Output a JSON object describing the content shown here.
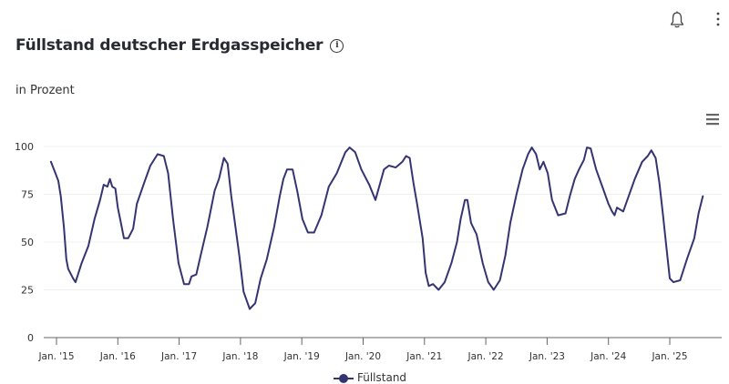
{
  "header": {
    "title": "Füllstand deutscher Erdgasspeicher",
    "info_icon": "info-icon",
    "subtitle": "in Prozent",
    "bell_icon": "bell-icon",
    "more_icon": "kebab-menu-icon",
    "chart_menu_icon": "hamburger-menu-icon"
  },
  "colors": {
    "line": "#353473",
    "grid": "#f0f0f0",
    "axis": "#666666",
    "text": "#262a33"
  },
  "legend": {
    "label": "Füllstand"
  },
  "chart_data": {
    "type": "line",
    "title": "Füllstand deutscher Erdgasspeicher",
    "subtitle": "in Prozent",
    "xlabel": "",
    "ylabel": "",
    "ylim": [
      0,
      100
    ],
    "yticks": [
      0,
      25,
      50,
      75,
      100
    ],
    "xticks": [
      "Jan. '15",
      "Jan. '16",
      "Jan. '17",
      "Jan. '18",
      "Jan. '19",
      "Jan. '20",
      "Jan. '21",
      "Jan. '22",
      "Jan. '23",
      "Jan. '24",
      "Jan. '25"
    ],
    "grid": true,
    "legend_position": "bottom-center",
    "series": [
      {
        "name": "Füllstand",
        "x_year": [
          2014.91,
          2014.97,
          2015.03,
          2015.07,
          2015.12,
          2015.16,
          2015.19,
          2015.27,
          2015.31,
          2015.41,
          2015.52,
          2015.62,
          2015.71,
          2015.77,
          2015.83,
          2015.87,
          2015.91,
          2015.96,
          2016.0,
          2016.05,
          2016.1,
          2016.17,
          2016.25,
          2016.31,
          2016.43,
          2016.53,
          2016.65,
          2016.75,
          2016.82,
          2016.9,
          2016.99,
          2017.08,
          2017.16,
          2017.2,
          2017.28,
          2017.35,
          2017.46,
          2017.58,
          2017.65,
          2017.73,
          2017.79,
          2017.85,
          2017.91,
          2017.98,
          2018.05,
          2018.15,
          2018.24,
          2018.33,
          2018.43,
          2018.55,
          2018.64,
          2018.7,
          2018.76,
          2018.85,
          2018.93,
          2019.01,
          2019.1,
          2019.2,
          2019.32,
          2019.44,
          2019.57,
          2019.71,
          2019.78,
          2019.87,
          2019.97,
          2020.1,
          2020.2,
          2020.28,
          2020.34,
          2020.42,
          2020.53,
          2020.64,
          2020.7,
          2020.76,
          2020.82,
          2020.88,
          2020.97,
          2021.02,
          2021.07,
          2021.14,
          2021.23,
          2021.33,
          2021.44,
          2021.53,
          2021.59,
          2021.66,
          2021.7,
          2021.76,
          2021.85,
          2021.95,
          2022.04,
          2022.13,
          2022.23,
          2022.32,
          2022.4,
          2022.5,
          2022.6,
          2022.69,
          2022.75,
          2022.82,
          2022.88,
          2022.94,
          2023.01,
          2023.08,
          2023.18,
          2023.3,
          2023.37,
          2023.45,
          2023.52,
          2023.6,
          2023.65,
          2023.71,
          2023.8,
          2023.9,
          2024.0,
          2024.06,
          2024.1,
          2024.14,
          2024.24,
          2024.33,
          2024.43,
          2024.55,
          2024.64,
          2024.7,
          2024.77,
          2024.83,
          2024.89,
          2024.95,
          2025.0,
          2025.06,
          2025.17,
          2025.28,
          2025.4,
          2025.47,
          2025.54
        ],
        "values": [
          92,
          87,
          82,
          74,
          58,
          41,
          36,
          31,
          29,
          39,
          48,
          62,
          72,
          80,
          79,
          83,
          79,
          78,
          68,
          60,
          52,
          52,
          57,
          70,
          81,
          90,
          96,
          95,
          86,
          62,
          39,
          28,
          28,
          32,
          33,
          43,
          58,
          77,
          83,
          94,
          91,
          74,
          60,
          43,
          24,
          15,
          18,
          31,
          41,
          58,
          74,
          83,
          88,
          88,
          76,
          62,
          55,
          55,
          64,
          79,
          86,
          97,
          99.5,
          97,
          88,
          80,
          72,
          81,
          88,
          90,
          89,
          92,
          95,
          94,
          81,
          70,
          52,
          34,
          27,
          28,
          25,
          29,
          39,
          50,
          62,
          72,
          72,
          60,
          54,
          39,
          29,
          25,
          30,
          43,
          60,
          75,
          88,
          96,
          99.5,
          96,
          88,
          92,
          86,
          72,
          64,
          65,
          74,
          83,
          88,
          93,
          99.5,
          99,
          88,
          79,
          70,
          66,
          64,
          68,
          66,
          74,
          83,
          92,
          95,
          98,
          94,
          81,
          64,
          46,
          31,
          29,
          30,
          41,
          52,
          65,
          74,
          77
        ]
      }
    ]
  }
}
